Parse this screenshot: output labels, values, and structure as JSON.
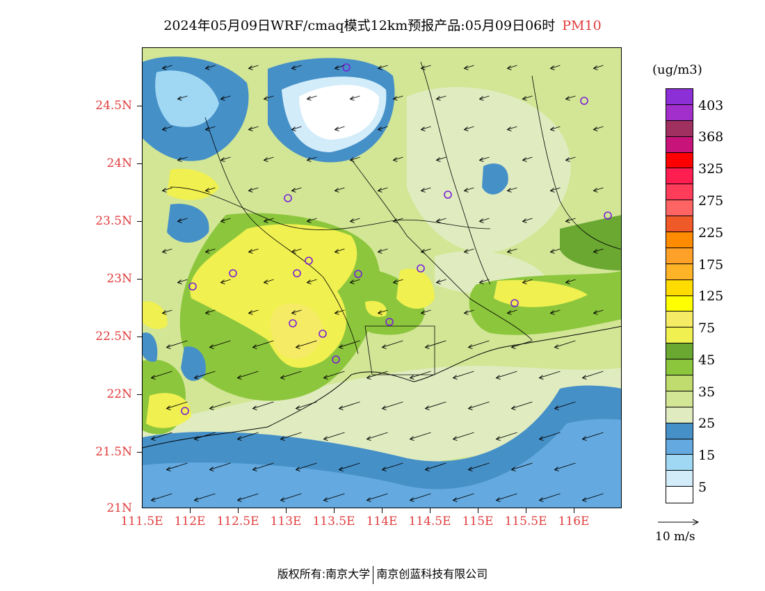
{
  "title": {
    "main": "2024年05月09日WRF/cmaq模式12km预报产品:05月09日06时",
    "variable": "PM10"
  },
  "axes": {
    "y_ticks": [
      "24.5N",
      "24N",
      "23.5N",
      "23N",
      "22.5N",
      "22N",
      "21.5N",
      "21N"
    ],
    "x_ticks": [
      "111.5E",
      "112E",
      "112.5E",
      "113E",
      "113.5E",
      "114E",
      "114.5E",
      "115E",
      "115.5E",
      "116E"
    ]
  },
  "legend": {
    "unit": "(ug/m3)",
    "labels": [
      "403",
      "368",
      "325",
      "275",
      "225",
      "175",
      "125",
      "75",
      "45",
      "35",
      "25",
      "15",
      "5"
    ],
    "colors": [
      "#8c2fd6",
      "#a22fcc",
      "#a03060",
      "#c8147a",
      "#ff0000",
      "#ff1e50",
      "#ff3c5a",
      "#ff6464",
      "#f05a28",
      "#ff8c00",
      "#ffa028",
      "#ffb428",
      "#ffdc00",
      "#ffff00",
      "#f5eb64",
      "#f0f050",
      "#6aa832",
      "#8cc63c",
      "#c0dc6e",
      "#d2e696",
      "#e0ecc0",
      "#4690c8",
      "#64aae0",
      "#a0d8f4",
      "#d2ecfa",
      "#ffffff"
    ]
  },
  "wind_key": {
    "label": "10 m/s"
  },
  "footer": {
    "left": "版权所有:南京大学",
    "right": "南京创蓝科技有限公司"
  }
}
